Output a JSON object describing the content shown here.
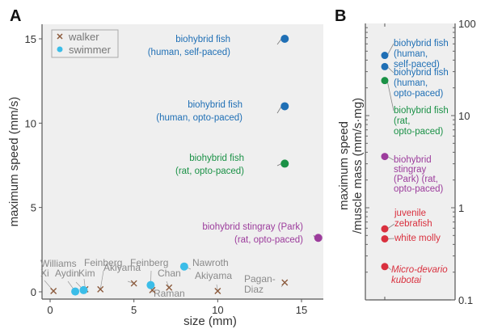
{
  "chart_data": [
    {
      "panel": "A",
      "type": "scatter",
      "xlabel": "size (mm)",
      "ylabel": "maximum speed (mm/s)",
      "xlim": [
        -0.5,
        16.5
      ],
      "ylim": [
        -0.4,
        16.2
      ],
      "xticks": [
        0,
        5,
        10,
        15
      ],
      "yticks": [
        0,
        5,
        10,
        15
      ],
      "legend": {
        "placement": "top-left",
        "entries": [
          {
            "label": "walker",
            "marker": "x",
            "color": "#8b5a3c"
          },
          {
            "label": "swimmer",
            "marker": "o",
            "color": "#3bbde8"
          }
        ]
      },
      "series": [
        {
          "name": "walker",
          "points": [
            {
              "x": 0.2,
              "y": 0.05,
              "label": "Xi"
            },
            {
              "x": 2.1,
              "y": 0.15,
              "label": "Kim"
            },
            {
              "x": 3.0,
              "y": 0.15,
              "label": "Feinberg"
            },
            {
              "x": 5.0,
              "y": 0.5,
              "label": "Akiyama"
            },
            {
              "x": 6.1,
              "y": 0.1,
              "label": "Raman"
            },
            {
              "x": 7.1,
              "y": 0.25,
              "label": "Chan"
            },
            {
              "x": 10.0,
              "y": 0.05,
              "label": "Akiyama"
            },
            {
              "x": 14.0,
              "y": 0.55,
              "label": "Pagan-Diaz"
            }
          ]
        },
        {
          "name": "swimmer",
          "points": [
            {
              "x": 1.5,
              "y": 0.02,
              "label": "Aydin"
            },
            {
              "x": 2.0,
              "y": 0.1,
              "label": "Williams"
            },
            {
              "x": 6.0,
              "y": 0.4,
              "label": "Feinberg"
            },
            {
              "x": 8.0,
              "y": 1.5,
              "label": "Nawroth"
            }
          ]
        },
        {
          "name": "highlight",
          "points": [
            {
              "x": 14.0,
              "y": 15.0,
              "label": "biohybrid fish\n(human, self-paced)",
              "color": "#1f6fb5"
            },
            {
              "x": 14.0,
              "y": 11.0,
              "label": "biohybrid fish\n(human, opto-paced)",
              "color": "#1f6fb5"
            },
            {
              "x": 14.0,
              "y": 7.6,
              "label": "biohybrid fish\n(rat, opto-paced)",
              "color": "#1a9146"
            },
            {
              "x": 16.0,
              "y": 3.2,
              "label": "biohybrid stingray (Park)\n(rat, opto-paced)",
              "color": "#9c3c9c"
            }
          ]
        }
      ]
    },
    {
      "panel": "B",
      "type": "scatter",
      "ylabel": "maximum speed\n/muscle mass (mm/s·mg)",
      "yscale": "log",
      "ylim": [
        0.1,
        100
      ],
      "yticks": [
        "0.1",
        "1",
        "10",
        "100"
      ],
      "points": [
        {
          "y": 45,
          "label": "biohybrid fish\n(human,\nself-paced)",
          "color": "#1f6fb5"
        },
        {
          "y": 34,
          "label": "biohybrid fish\n(human,\nopto-paced)",
          "color": "#1f6fb5"
        },
        {
          "y": 24,
          "label": "biohybrid fish\n(rat,\nopto-paced)",
          "color": "#1a9146"
        },
        {
          "y": 3.6,
          "label": "biohybrid\nstingray\n(Park) (rat,\nopto-paced)",
          "color": "#9c3c9c"
        },
        {
          "y": 0.59,
          "label": "juvenile\nzebrafish",
          "color": "#d9303e"
        },
        {
          "y": 0.46,
          "label": "white molly",
          "color": "#d9303e"
        },
        {
          "y": 0.23,
          "label": "Micro-devario\nkubotai",
          "color": "#d9303e",
          "italic": true
        }
      ]
    }
  ],
  "labels": {
    "panel_a": "A",
    "panel_b": "B"
  }
}
